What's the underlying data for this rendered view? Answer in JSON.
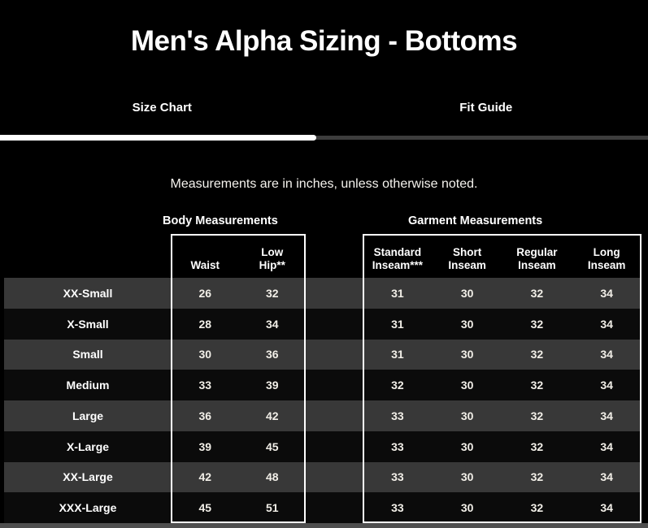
{
  "title": "Men's Alpha Sizing - Bottoms",
  "tabs": {
    "size_chart": "Size Chart",
    "fit_guide": "Fit Guide",
    "active": "Size Chart"
  },
  "note": "Measurements are in inches, unless otherwise noted.",
  "sections": {
    "body": "Body Measurements",
    "garment": "Garment Measurements"
  },
  "columns": {
    "body": [
      "Waist",
      "Low\nHip**"
    ],
    "garment": [
      "Standard\nInseam***",
      "Short\nInseam",
      "Regular\nInseam",
      "Long\nInseam"
    ]
  },
  "table": {
    "rows": [
      {
        "size": "XX-Small",
        "body": [
          "26",
          "32"
        ],
        "garment": [
          "31",
          "30",
          "32",
          "34"
        ]
      },
      {
        "size": "X-Small",
        "body": [
          "28",
          "34"
        ],
        "garment": [
          "31",
          "30",
          "32",
          "34"
        ]
      },
      {
        "size": "Small",
        "body": [
          "30",
          "36"
        ],
        "garment": [
          "31",
          "30",
          "32",
          "34"
        ]
      },
      {
        "size": "Medium",
        "body": [
          "33",
          "39"
        ],
        "garment": [
          "32",
          "30",
          "32",
          "34"
        ]
      },
      {
        "size": "Large",
        "body": [
          "36",
          "42"
        ],
        "garment": [
          "33",
          "30",
          "32",
          "34"
        ]
      },
      {
        "size": "X-Large",
        "body": [
          "39",
          "45"
        ],
        "garment": [
          "33",
          "30",
          "32",
          "34"
        ]
      },
      {
        "size": "XX-Large",
        "body": [
          "42",
          "48"
        ],
        "garment": [
          "33",
          "30",
          "32",
          "34"
        ]
      },
      {
        "size": "XXX-Large",
        "body": [
          "45",
          "51"
        ],
        "garment": [
          "33",
          "30",
          "32",
          "34"
        ]
      }
    ]
  },
  "colors": {
    "background": "#000000",
    "row_alternate": "#383838",
    "row_dark": "#0b0b0b",
    "text": "#ffffff",
    "tab_indicator": "#ffffff",
    "tab_track": "#3d3d3d",
    "box_border": "#ffffff",
    "scrollbar": "#4f4f4f"
  }
}
